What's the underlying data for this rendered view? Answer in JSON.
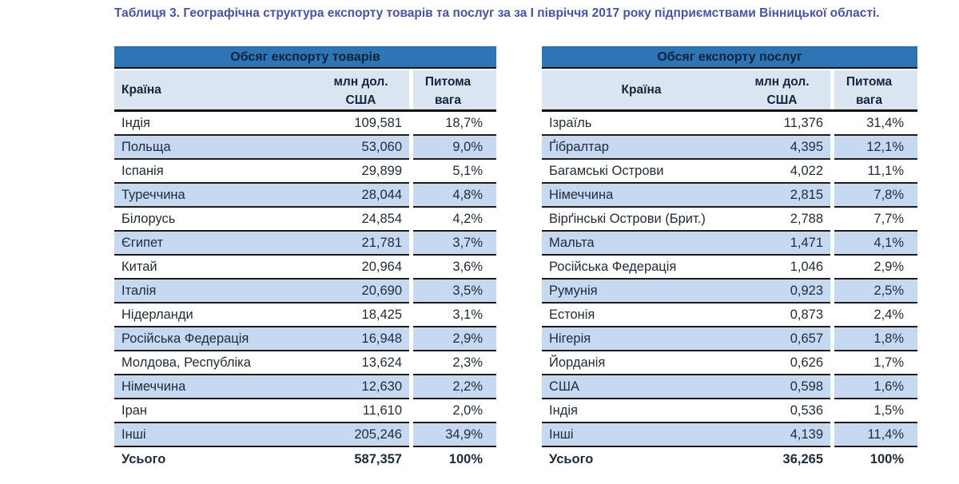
{
  "title": "Таблиця 3. Географічна структура експорту товарів та послуг за за І півріччя 2017 року підприємствами Вінницької області.",
  "colors": {
    "title_text": "#4a52a8",
    "band_bg": "#2e75b6",
    "band_text": "#102338",
    "header_row_bg": "#dbe5f2",
    "shaded_row_bg": "#c6d9f0",
    "border": "#1c1c1c"
  },
  "tables": [
    {
      "header": "Обсяг експорту товарів",
      "columns": {
        "country": "Країна",
        "value_line1": "млн дол.",
        "value_line2": "США",
        "share_line1": "Питома",
        "share_line2": "вага"
      },
      "rows": [
        {
          "country": "Індія",
          "value": "109,581",
          "share": "18,7%"
        },
        {
          "country": "Польща",
          "value": "53,060",
          "share": "9,0%"
        },
        {
          "country": "Іспанія",
          "value": "29,899",
          "share": "5,1%"
        },
        {
          "country": "Туреччина",
          "value": "28,044",
          "share": "4,8%"
        },
        {
          "country": "Білорусь",
          "value": "24,854",
          "share": "4,2%"
        },
        {
          "country": "Єгипет",
          "value": "21,781",
          "share": "3,7%"
        },
        {
          "country": "Китай",
          "value": "20,964",
          "share": "3,6%"
        },
        {
          "country": "Італія",
          "value": "20,690",
          "share": "3,5%"
        },
        {
          "country": "Нідерланди",
          "value": "18,425",
          "share": "3,1%"
        },
        {
          "country": "Російська Федерація",
          "value": "16,948",
          "share": "2,9%"
        },
        {
          "country": "Молдова, Республіка",
          "value": "13,624",
          "share": "2,3%"
        },
        {
          "country": "Німеччина",
          "value": "12,630",
          "share": "2,2%"
        },
        {
          "country": "Іран",
          "value": "11,610",
          "share": "2,0%"
        },
        {
          "country": "Інші",
          "value": "205,246",
          "share": "34,9%"
        }
      ],
      "total": {
        "label": "Усього",
        "value": "587,357",
        "share": "100%"
      }
    },
    {
      "header": "Обсяг експорту послуг",
      "columns": {
        "country": "Країна",
        "value_line1": "млн дол.",
        "value_line2": "США",
        "share_line1": "Питома",
        "share_line2": "вага"
      },
      "rows": [
        {
          "country": "Ізраїль",
          "value": "11,376",
          "share": "31,4%"
        },
        {
          "country": "Ґібралтар",
          "value": "4,395",
          "share": "12,1%"
        },
        {
          "country": "Багамські Острови",
          "value": "4,022",
          "share": "11,1%"
        },
        {
          "country": "Німеччина",
          "value": "2,815",
          "share": "7,8%"
        },
        {
          "country": "Вірґінські Острови (Брит.)",
          "value": "2,788",
          "share": "7,7%"
        },
        {
          "country": "Мальта",
          "value": "1,471",
          "share": "4,1%"
        },
        {
          "country": "Російська Федерація",
          "value": "1,046",
          "share": "2,9%"
        },
        {
          "country": "Румунія",
          "value": "0,923",
          "share": "2,5%"
        },
        {
          "country": "Естонія",
          "value": "0,873",
          "share": "2,4%"
        },
        {
          "country": "Нігерія",
          "value": "0,657",
          "share": "1,8%"
        },
        {
          "country": "Йорданія",
          "value": "0,626",
          "share": "1,7%"
        },
        {
          "country": "США",
          "value": "0,598",
          "share": "1,6%"
        },
        {
          "country": "Індія",
          "value": "0,536",
          "share": "1,5%"
        },
        {
          "country": "Інші",
          "value": "4,139",
          "share": "11,4%"
        }
      ],
      "total": {
        "label": "Усього",
        "value": "36,265",
        "share": "100%"
      }
    }
  ]
}
